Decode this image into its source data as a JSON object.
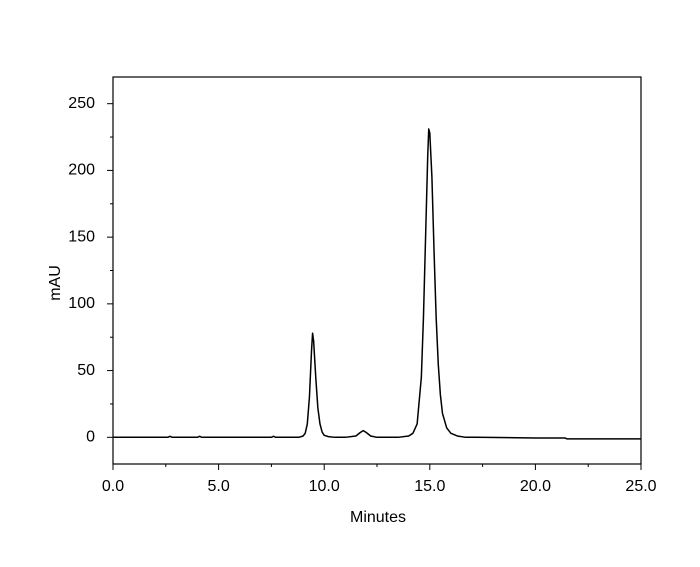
{
  "chart_data": {
    "type": "line",
    "xlabel": "Minutes",
    "ylabel": "mAU",
    "xlim": [
      0,
      25
    ],
    "ylim": [
      -20,
      270
    ],
    "xticks": [
      {
        "value": 0,
        "label": "0.0"
      },
      {
        "value": 5,
        "label": "5.0"
      },
      {
        "value": 10,
        "label": "10.0"
      },
      {
        "value": 15,
        "label": "15.0"
      },
      {
        "value": 20,
        "label": "20.0"
      },
      {
        "value": 25,
        "label": "25.0"
      }
    ],
    "yticks": [
      0,
      50,
      100,
      150,
      200,
      250
    ],
    "xminorticks": [
      2.5,
      7.5,
      12.5,
      17.5,
      22.5
    ],
    "yminorticks": [
      25,
      75,
      125,
      175,
      225
    ],
    "grid": false,
    "color": "#000000",
    "x": [
      0,
      2.6,
      2.7,
      2.8,
      4.0,
      4.1,
      4.2,
      7.5,
      7.6,
      7.7,
      8.8,
      9.0,
      9.1,
      9.2,
      9.3,
      9.4,
      9.45,
      9.5,
      9.6,
      9.7,
      9.8,
      9.9,
      10.0,
      10.2,
      10.5,
      11.0,
      11.5,
      11.7,
      11.85,
      12.0,
      12.2,
      12.5,
      13.5,
      14.0,
      14.2,
      14.4,
      14.6,
      14.7,
      14.8,
      14.9,
      14.95,
      15.0,
      15.1,
      15.2,
      15.3,
      15.4,
      15.5,
      15.6,
      15.8,
      16.0,
      16.3,
      16.7,
      17.2,
      20.0,
      21.4,
      21.5,
      25.0
    ],
    "values": [
      0,
      0,
      0.8,
      0,
      0,
      0.8,
      0,
      0,
      0.8,
      0,
      0,
      1,
      3,
      10,
      30,
      65,
      78,
      72,
      45,
      22,
      10,
      4,
      1.5,
      0.5,
      0,
      0,
      1,
      3.5,
      5,
      3.5,
      1,
      0,
      0,
      1,
      3,
      10,
      45,
      90,
      150,
      210,
      231,
      228,
      195,
      140,
      90,
      55,
      32,
      18,
      7,
      3,
      1,
      0,
      0,
      -0.5,
      -0.5,
      -1.2,
      -1.2
    ]
  }
}
